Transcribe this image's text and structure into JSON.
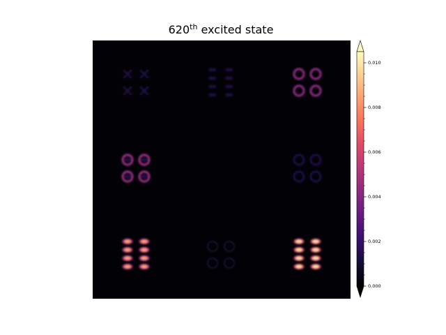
{
  "chart_data": {
    "type": "heatmap",
    "title": {
      "base": "620",
      "sup": "th",
      "rest": " excited state"
    },
    "colormap": "magma",
    "colorbar": {
      "vmin": 0.0,
      "vmax": 0.0105,
      "extend": "both",
      "tick_labels": [
        "0.000",
        "0.002",
        "0.004",
        "0.006",
        "0.008",
        "0.010"
      ],
      "tick_values": [
        0.0,
        0.002,
        0.004,
        0.006,
        0.008,
        0.01
      ],
      "minor_tick_values": [
        0.0005,
        0.001,
        0.0015,
        0.0025,
        0.003,
        0.0035,
        0.0045,
        0.005,
        0.0055,
        0.0065,
        0.007,
        0.0075,
        0.0085,
        0.009,
        0.0095
      ]
    },
    "grid": "3x3 subgrid blocks of orbital-density lobes",
    "blocks": [
      {
        "row": 0,
        "col": 0,
        "pattern": "x",
        "peak": 0.0012
      },
      {
        "row": 0,
        "col": 1,
        "pattern": "bars",
        "peak": 0.0012
      },
      {
        "row": 0,
        "col": 2,
        "pattern": "rings",
        "peak": 0.0042
      },
      {
        "row": 1,
        "col": 0,
        "pattern": "rings-filled",
        "peak": 0.0045
      },
      {
        "row": 1,
        "col": 1,
        "pattern": "none",
        "peak": 0.0
      },
      {
        "row": 1,
        "col": 2,
        "pattern": "rings",
        "peak": 0.0013
      },
      {
        "row": 2,
        "col": 0,
        "pattern": "stacked",
        "peak": 0.0085
      },
      {
        "row": 2,
        "col": 1,
        "pattern": "rings",
        "peak": 0.0006
      },
      {
        "row": 2,
        "col": 2,
        "pattern": "stacked",
        "peak": 0.0098
      }
    ]
  }
}
